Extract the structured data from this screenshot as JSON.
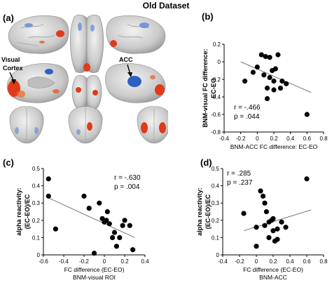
{
  "figure": {
    "title": "Old Dataset",
    "brain_panel": {
      "label": "(a)",
      "annotations": [
        "Visual",
        "Cortex",
        "ACC"
      ]
    }
  },
  "chart_data": [
    {
      "id": "b",
      "label": "(b)",
      "type": "scatter",
      "xlabel": "BNM-ACC FC difference: EC-EO",
      "ylabel": [
        "BNM-visual FC difference:",
        "EC-EO"
      ],
      "xlim": [
        -0.4,
        0.8
      ],
      "ylim": [
        -0.8,
        0.2
      ],
      "xticks": [
        -0.4,
        -0.2,
        0,
        0.2,
        0.4,
        0.6,
        0.8
      ],
      "yticks": [
        -0.8,
        -0.6,
        -0.4,
        -0.2,
        0,
        0.2
      ],
      "xtick_labels": [
        "-0.4",
        "-0.2",
        "0",
        "0.2",
        "0.4",
        "0.6",
        "0.8"
      ],
      "ytick_labels": [
        "-0.8",
        "-0.6",
        "-0.4",
        "-0.2",
        "0",
        "0.2"
      ],
      "stats": [
        "r = -.466",
        "p = .044"
      ],
      "stats_position": "bottom-left",
      "x": [
        -0.15,
        -0.05,
        0.0,
        0.05,
        0.08,
        0.1,
        0.12,
        0.12,
        0.15,
        0.15,
        0.18,
        0.2,
        0.2,
        0.22,
        0.25,
        0.28,
        0.3,
        0.35,
        0.6
      ],
      "y": [
        -0.22,
        -0.12,
        -0.06,
        0.08,
        -0.15,
        0.06,
        -0.3,
        -0.42,
        0.05,
        -0.18,
        -0.1,
        -0.22,
        -0.32,
        -0.08,
        0.08,
        -0.3,
        -0.22,
        -0.25,
        -0.6
      ],
      "trend": {
        "x": [
          -0.2,
          0.65
        ],
        "y": [
          0.0,
          -0.35
        ]
      }
    },
    {
      "id": "c",
      "label": "(c)",
      "type": "scatter",
      "xlabel": [
        "FC difference (EC-EO)",
        "BNM-visual ROI"
      ],
      "ylabel": [
        "alpha reactivity:",
        "(EC-EO)/EC"
      ],
      "xlim": [
        -0.6,
        0.4
      ],
      "ylim": [
        0,
        0.5
      ],
      "xticks": [
        -0.6,
        -0.4,
        -0.2,
        0,
        0.2,
        0.4
      ],
      "yticks": [
        0,
        0.1,
        0.2,
        0.3,
        0.4,
        0.5
      ],
      "xtick_labels": [
        "-0.6",
        "-0.4",
        "-0.2",
        "0",
        "0.2",
        "0.4"
      ],
      "ytick_labels": [
        "0",
        "0.1",
        "0.2",
        "0.3",
        "0.4",
        "0.5"
      ],
      "stats": [
        "r = -.630",
        "p = .004"
      ],
      "stats_position": "top-right",
      "x": [
        -0.55,
        -0.55,
        -0.48,
        -0.2,
        -0.15,
        -0.05,
        -0.02,
        0.0,
        0.02,
        0.03,
        0.05,
        0.08,
        0.1,
        0.12,
        0.15,
        0.18,
        0.2,
        0.25,
        0.28,
        -0.1
      ],
      "y": [
        0.44,
        0.34,
        0.15,
        0.34,
        0.27,
        0.3,
        0.21,
        0.19,
        0.2,
        0.25,
        0.18,
        0.1,
        0.13,
        0.05,
        0.1,
        0.17,
        0.2,
        0.17,
        0.03,
        0.01
      ],
      "trend": {
        "x": [
          -0.55,
          0.3
        ],
        "y": [
          0.33,
          0.1
        ]
      }
    },
    {
      "id": "d",
      "label": "(d)",
      "type": "scatter",
      "xlabel": [
        "FC difference (EC-EO)",
        "BNM-ACC"
      ],
      "ylabel": [
        "alpha reactivity:",
        "(EC-EO)/EC"
      ],
      "xlim": [
        -0.4,
        0.8
      ],
      "ylim": [
        0,
        0.5
      ],
      "xticks": [
        -0.4,
        -0.2,
        0,
        0.2,
        0.4,
        0.6,
        0.8
      ],
      "yticks": [
        0,
        0.1,
        0.2,
        0.3,
        0.4,
        0.5
      ],
      "xtick_labels": [
        "-0.4",
        "-0.2",
        "0",
        "0.2",
        "0.4",
        "0.6",
        "0.8"
      ],
      "ytick_labels": [
        "0",
        "0.1",
        "0.2",
        "0.3",
        "0.4",
        "0.5"
      ],
      "stats": [
        "r = .285",
        "p = .237"
      ],
      "stats_position": "top-left",
      "x": [
        -0.15,
        0.0,
        0.05,
        0.08,
        0.1,
        0.1,
        0.12,
        0.15,
        0.15,
        0.18,
        0.2,
        0.2,
        0.22,
        0.25,
        0.25,
        0.3,
        0.35,
        0.6,
        0.0
      ],
      "y": [
        0.24,
        0.16,
        0.37,
        0.34,
        0.3,
        0.17,
        0.25,
        0.19,
        0.1,
        0.2,
        0.21,
        0.14,
        0.08,
        0.15,
        0.09,
        0.19,
        0.16,
        0.44,
        0.05
      ],
      "trend": {
        "x": [
          -0.15,
          0.65
        ],
        "y": [
          0.14,
          0.26
        ]
      }
    }
  ]
}
